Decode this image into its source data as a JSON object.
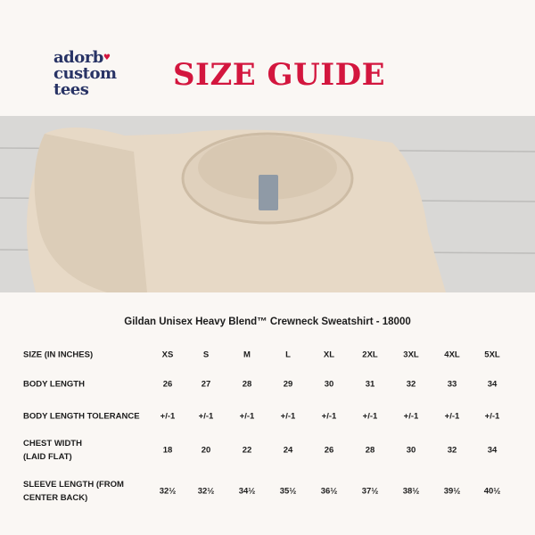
{
  "logo": {
    "line1": "adorb",
    "line2": "custom",
    "line3": "tees",
    "heart_icon": "heart-icon",
    "color": "#283365"
  },
  "title": "SIZE GUIDE",
  "title_color": "#d3163e",
  "product": "Gildan Unisex Heavy Blend™ Crewneck Sweatshirt - 18000",
  "table": {
    "header_label": "SIZE (IN INCHES)",
    "sizes": [
      "XS",
      "S",
      "M",
      "L",
      "XL",
      "2XL",
      "3XL",
      "4XL",
      "5XL"
    ],
    "rows": [
      {
        "label": "BODY LENGTH",
        "values": [
          "26",
          "27",
          "28",
          "29",
          "30",
          "31",
          "32",
          "33",
          "34"
        ]
      },
      {
        "label": "BODY LENGTH TOLERANCE",
        "values": [
          "+/-1",
          "+/-1",
          "+/-1",
          "+/-1",
          "+/-1",
          "+/-1",
          "+/-1",
          "+/-1",
          "+/-1"
        ]
      },
      {
        "label": "CHEST WIDTH\n(LAID FLAT)",
        "values": [
          "18",
          "20",
          "22",
          "24",
          "26",
          "28",
          "30",
          "32",
          "34"
        ]
      },
      {
        "label": "SLEEVE LENGTH (FROM\nCENTER BACK)",
        "values": [
          "32½",
          "32½",
          "34½",
          "35½",
          "36½",
          "37½",
          "38½",
          "39½",
          "40½"
        ]
      }
    ]
  }
}
